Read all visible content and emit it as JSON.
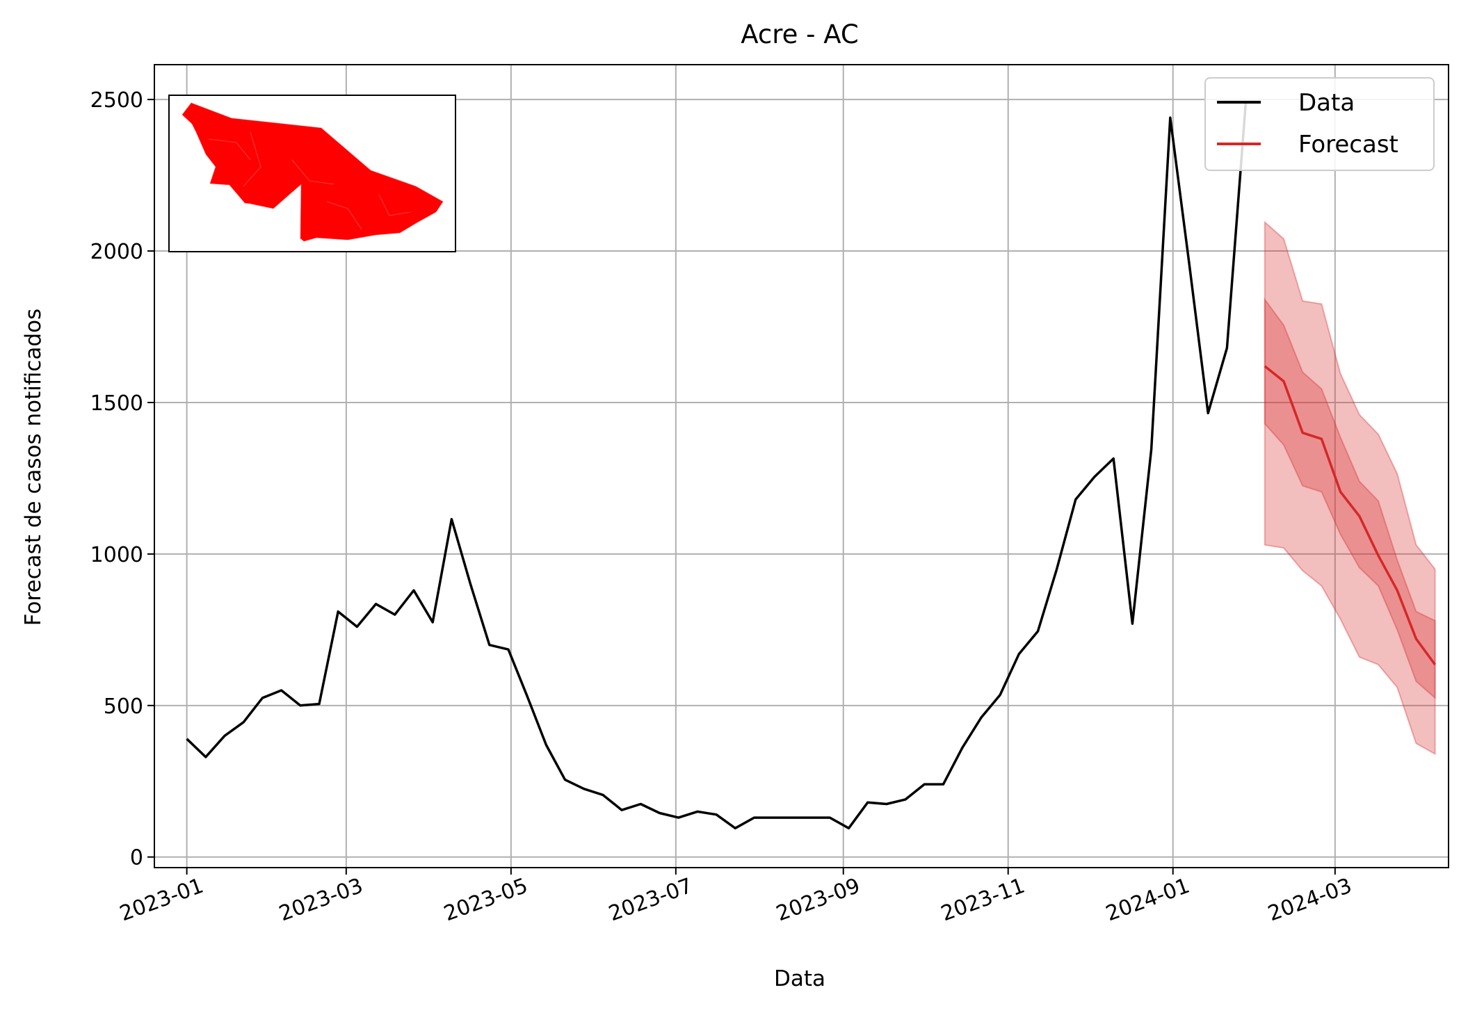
{
  "chart_data": {
    "type": "line",
    "title": "Acre - AC",
    "xlabel": "Data",
    "ylabel": "Forecast de casos notificados",
    "x_range": [
      "2022-12-20",
      "2024-04-12"
    ],
    "ylim": [
      -35,
      2615
    ],
    "grid": true,
    "legend_position": "top-right",
    "x_tick_labels": [
      "2023-01",
      "2023-03",
      "2023-05",
      "2023-07",
      "2023-09",
      "2023-11",
      "2024-01",
      "2024-03"
    ],
    "y_ticks": [
      0,
      500,
      1000,
      1500,
      2000,
      2500
    ],
    "colors": {
      "data": "#000000",
      "forecast": "#d62728",
      "band": "#d62728",
      "map": "#ff0000"
    },
    "series": [
      {
        "name": "Data",
        "x": [
          "2023-01-01",
          "2023-01-08",
          "2023-01-15",
          "2023-01-22",
          "2023-01-29",
          "2023-02-05",
          "2023-02-12",
          "2023-02-19",
          "2023-02-26",
          "2023-03-05",
          "2023-03-12",
          "2023-03-19",
          "2023-03-26",
          "2023-04-02",
          "2023-04-09",
          "2023-04-16",
          "2023-04-23",
          "2023-04-30",
          "2023-05-07",
          "2023-05-14",
          "2023-05-21",
          "2023-05-28",
          "2023-06-04",
          "2023-06-11",
          "2023-06-18",
          "2023-06-25",
          "2023-07-02",
          "2023-07-09",
          "2023-07-16",
          "2023-07-23",
          "2023-07-30",
          "2023-08-06",
          "2023-08-13",
          "2023-08-20",
          "2023-08-27",
          "2023-09-03",
          "2023-09-10",
          "2023-09-17",
          "2023-09-24",
          "2023-10-01",
          "2023-10-08",
          "2023-10-15",
          "2023-10-22",
          "2023-10-29",
          "2023-11-05",
          "2023-11-12",
          "2023-11-19",
          "2023-11-26",
          "2023-12-03",
          "2023-12-10",
          "2023-12-17",
          "2023-12-24",
          "2023-12-31",
          "2024-01-07",
          "2024-01-14",
          "2024-01-21",
          "2024-01-28"
        ],
        "values": [
          390,
          330,
          400,
          445,
          525,
          550,
          500,
          505,
          810,
          760,
          835,
          800,
          880,
          775,
          1115,
          900,
          700,
          685,
          530,
          370,
          255,
          225,
          205,
          155,
          175,
          145,
          130,
          150,
          140,
          95,
          130,
          130,
          130,
          130,
          130,
          95,
          180,
          175,
          190,
          240,
          240,
          360,
          460,
          535,
          670,
          745,
          950,
          1180,
          1255,
          1315,
          770,
          1345,
          2440,
          1960,
          1465,
          1680,
          2495
        ]
      },
      {
        "name": "Forecast",
        "x": [
          "2024-02-04",
          "2024-02-11",
          "2024-02-18",
          "2024-02-25",
          "2024-03-03",
          "2024-03-10",
          "2024-03-17",
          "2024-03-24",
          "2024-03-31",
          "2024-04-07"
        ],
        "values": [
          1620,
          1570,
          1400,
          1380,
          1205,
          1125,
          995,
          880,
          720,
          635
        ],
        "inner_band_lower": [
          1430,
          1360,
          1225,
          1205,
          1065,
          955,
          895,
          750,
          580,
          525
        ],
        "inner_band_upper": [
          1840,
          1755,
          1600,
          1545,
          1385,
          1240,
          1175,
          980,
          810,
          780
        ],
        "outer_band_lower": [
          1030,
          1020,
          945,
          895,
          785,
          660,
          635,
          560,
          375,
          340
        ],
        "outer_band_upper": [
          2095,
          2040,
          1835,
          1825,
          1595,
          1460,
          1395,
          1265,
          1030,
          950
        ]
      }
    ]
  },
  "inset_map": {
    "label": "Acre state map",
    "fill_color": "#ff0000"
  }
}
